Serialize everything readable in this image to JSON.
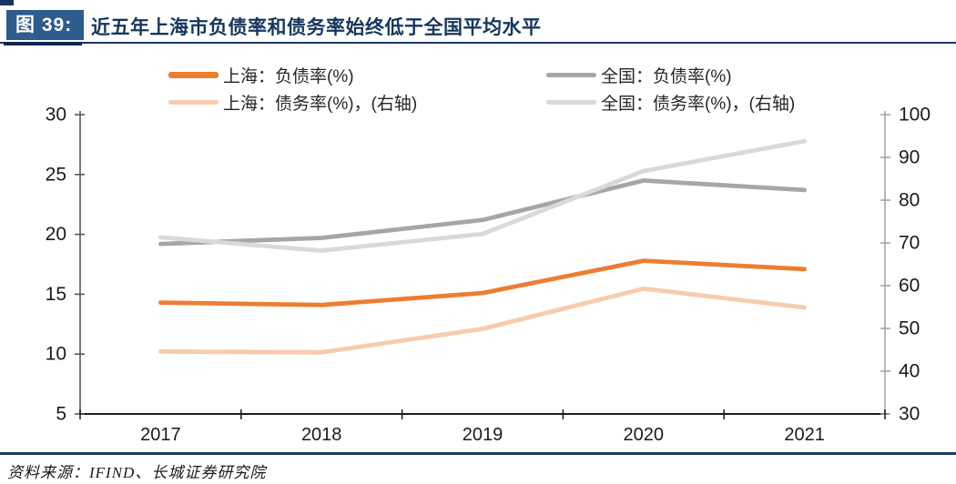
{
  "header": {
    "figure_label": "图 39:",
    "title": "近五年上海市负债率和债务率始终低于全国平均水平"
  },
  "footer": {
    "source": "资料来源：IFIND、长城证券研究院"
  },
  "colors": {
    "badge_blue": "#2D5C8D",
    "title_navy": "#16365C",
    "rule_navy": "#1F3864",
    "shanghai_debt_ratio": "#ED7D31",
    "shanghai_debt_service_ratio": "#F8CBAD",
    "national_debt_ratio": "#A6A6A6",
    "national_debt_service_ratio": "#D9D9D9",
    "left_axis": "#595959",
    "right_axis": "#A6A6A6",
    "bottom_axis": "#1a1a1a"
  },
  "chart_data": {
    "type": "line",
    "title": "近五年上海市负债率和债务率始终低于全国平均水平",
    "x_axis": {
      "categories": [
        "2017",
        "2018",
        "2019",
        "2020",
        "2021"
      ]
    },
    "left_axis": {
      "min": 5,
      "max": 30,
      "tick_values": [
        30,
        25,
        20,
        15,
        10,
        5
      ],
      "tick_labels": [
        "30",
        "25",
        "20",
        "15",
        "10",
        "5"
      ]
    },
    "right_axis": {
      "min": 30,
      "max": 100,
      "tick_values": [
        100,
        90,
        80,
        70,
        60,
        50,
        40,
        30
      ],
      "tick_labels": [
        "100",
        "90",
        "80",
        "70",
        "60",
        "50",
        "40",
        "30"
      ]
    },
    "series": [
      {
        "id": "shanghai-fuzhailv",
        "name": "上海：负债率(%)",
        "axis": "left",
        "color": "#ED7D31",
        "values": [
          14.3,
          14.1,
          15.1,
          17.8,
          17.1
        ]
      },
      {
        "id": "quanguo-fuzhailv",
        "name": "全国：负债率(%)",
        "axis": "left",
        "color": "#A6A6A6",
        "values": [
          19.2,
          19.7,
          21.2,
          24.5,
          23.7
        ]
      },
      {
        "id": "shanghai-zhaiwulv",
        "name": "上海：债务率(%)，(右轴)",
        "axis": "right",
        "color": "#F8CBAD",
        "values": [
          44.6,
          44.4,
          49.9,
          59.3,
          54.9
        ]
      },
      {
        "id": "quanguo-zhaiwulv",
        "name": "全国：债务率(%)，(右轴)",
        "axis": "right",
        "color": "#D9D9D9",
        "values": [
          71.3,
          68.2,
          72.1,
          86.8,
          93.8
        ]
      }
    ],
    "legend": [
      {
        "label": "上海：负债率(%)",
        "color": "#ED7D31",
        "thick": true
      },
      {
        "label": "全国：负债率(%)",
        "color": "#A6A6A6",
        "thick": false
      },
      {
        "label": "上海：债务率(%)，(右轴)",
        "color": "#F8CBAD",
        "thick": false
      },
      {
        "label": "全国：债务率(%)，(右轴)",
        "color": "#D9D9D9",
        "thick": false
      }
    ],
    "legend_position": "top",
    "grid": false,
    "draw_order": [
      1,
      3,
      2,
      0
    ]
  }
}
